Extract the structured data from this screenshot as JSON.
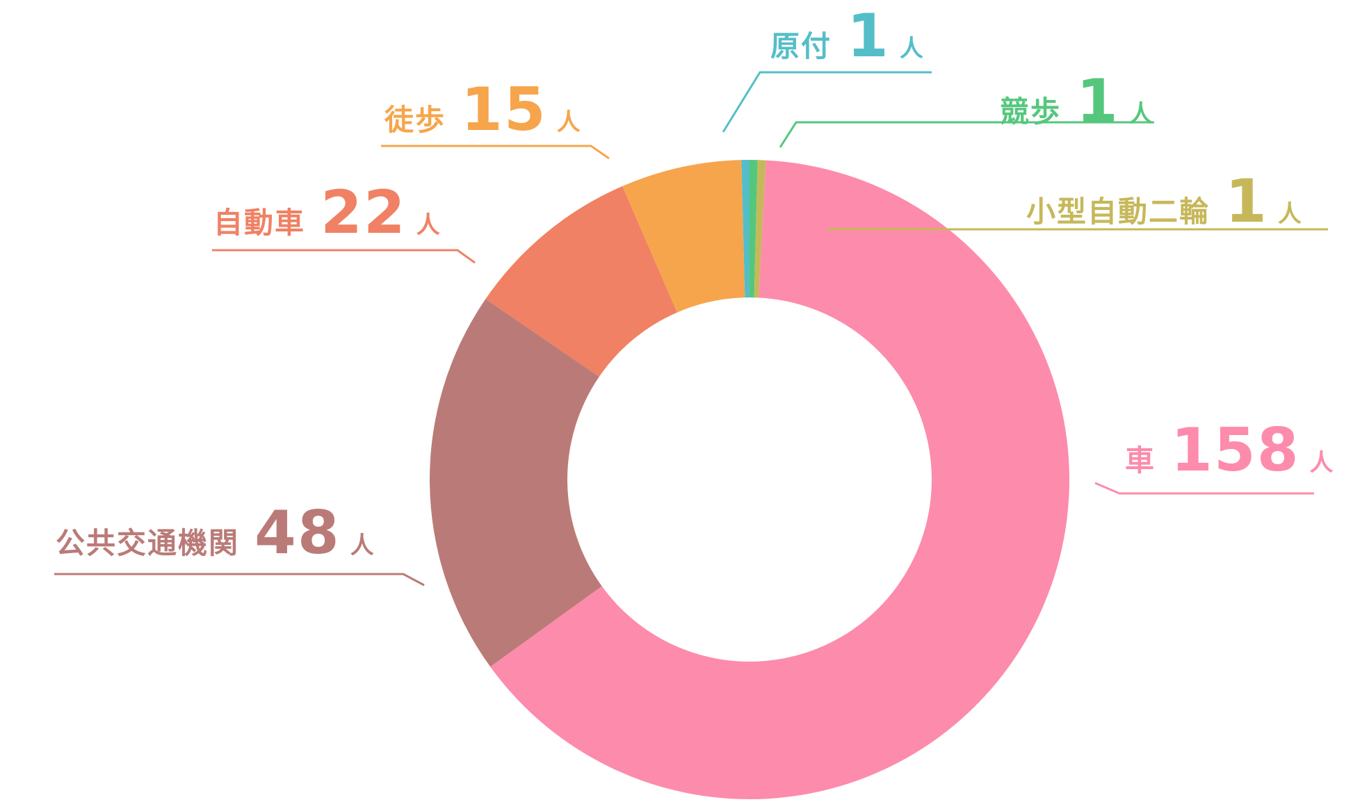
{
  "chart_data": {
    "type": "pie",
    "unit": "人",
    "slices": [
      {
        "label": "競歩",
        "value": 1,
        "color": "#55c77d"
      },
      {
        "label": "小型自動二輪",
        "value": 1,
        "color": "#c6b85a"
      },
      {
        "label": "車",
        "value": 158,
        "color": "#fd8bab"
      },
      {
        "label": "公共交通機関",
        "value": 48,
        "color": "#ba7b78"
      },
      {
        "label": "自動車",
        "value": 22,
        "color": "#f08164"
      },
      {
        "label": "徒歩",
        "value": 15,
        "color": "#f6a54c"
      },
      {
        "label": "原付",
        "value": 1,
        "color": "#54bec8"
      }
    ]
  }
}
